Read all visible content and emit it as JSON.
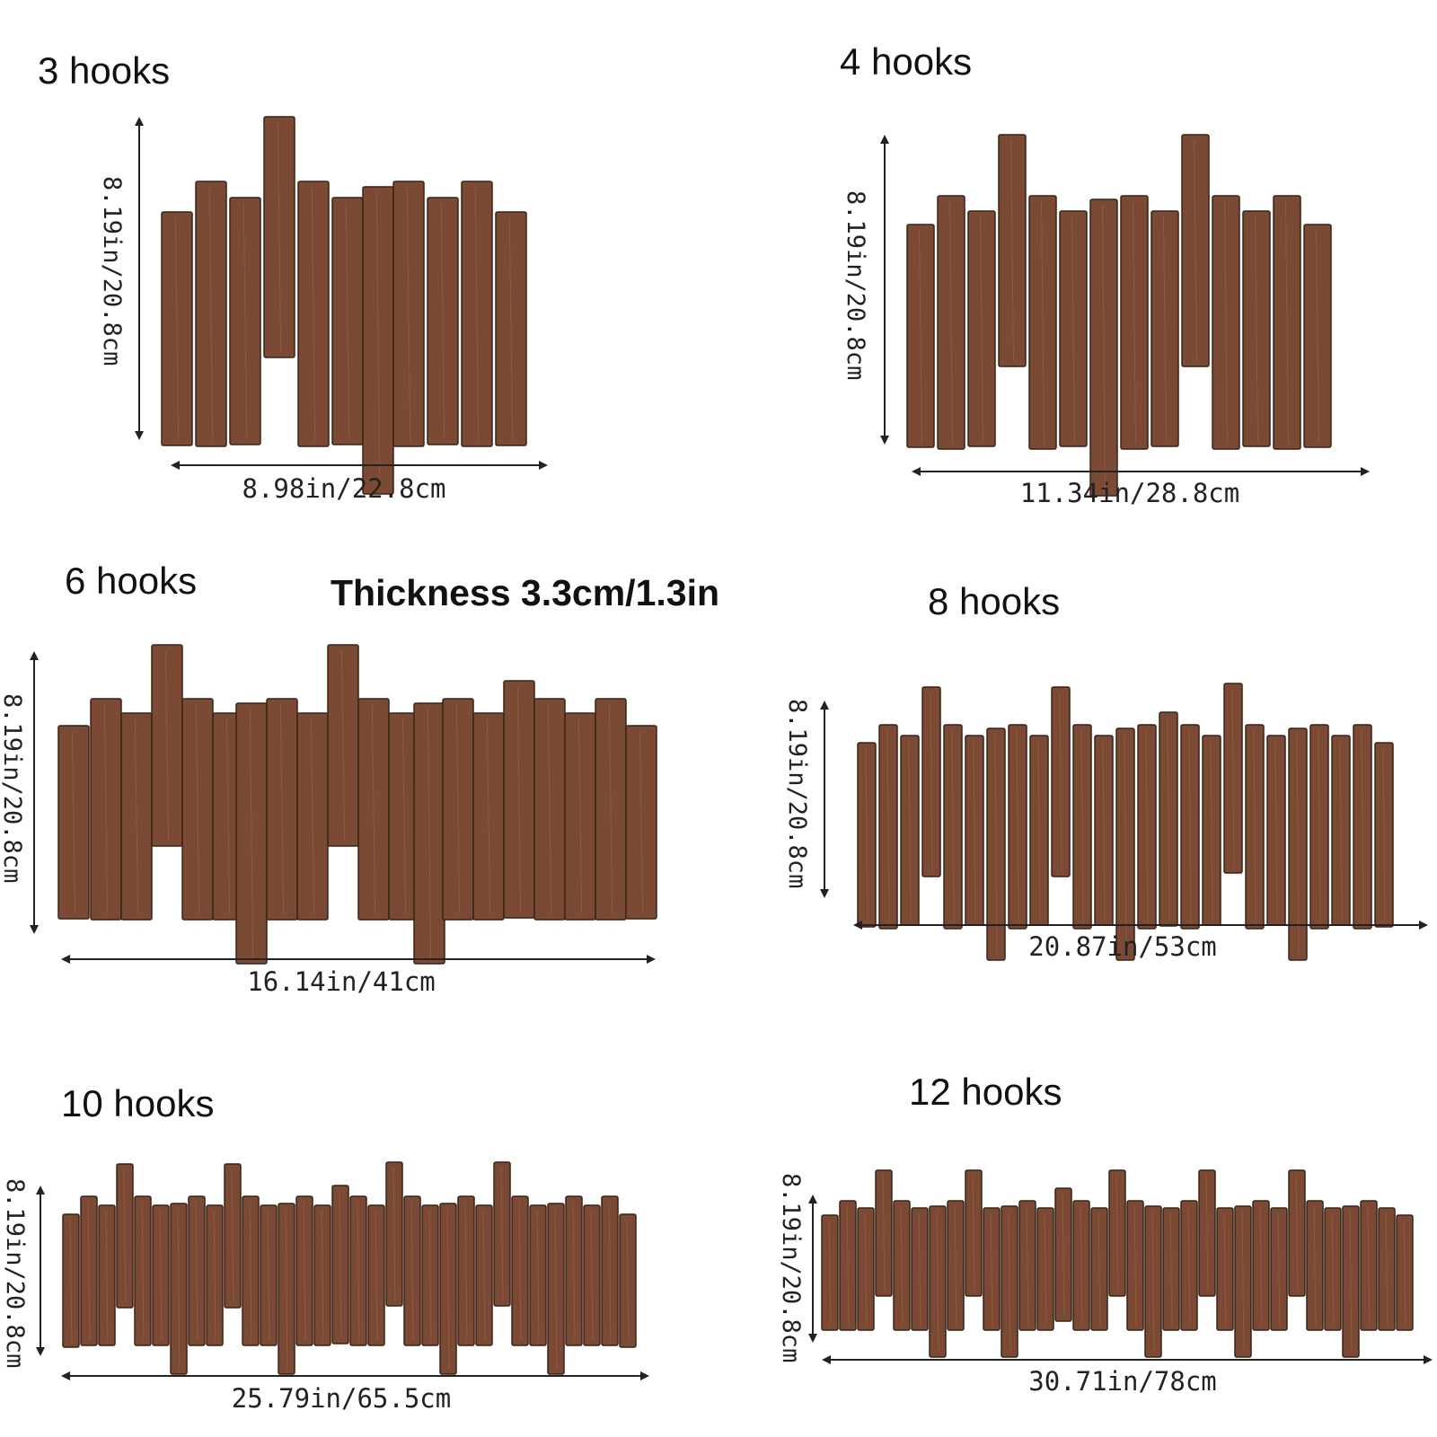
{
  "thickness_label": "Thickness 3.3cm/1.3in",
  "wood_color": "#7a4a35",
  "products": [
    {
      "title": "3 hooks",
      "width_label": "8.98in/22.8cm",
      "height_label": "8.19in/20.8cm"
    },
    {
      "title": "4 hooks",
      "width_label": "11.34in/28.8cm",
      "height_label": "8.19in/20.8cm"
    },
    {
      "title": "6 hooks",
      "width_label": "16.14in/41cm",
      "height_label": "8.19in/20.8cm"
    },
    {
      "title": "8 hooks",
      "width_label": "20.87in/53cm",
      "height_label": "8.19in/20.8cm"
    },
    {
      "title": "10 hooks",
      "width_label": "25.79in/65.5cm",
      "height_label": "8.19in/20.8cm"
    },
    {
      "title": "12 hooks",
      "width_label": "30.71in/78cm",
      "height_label": "8.19in/20.8cm"
    }
  ]
}
